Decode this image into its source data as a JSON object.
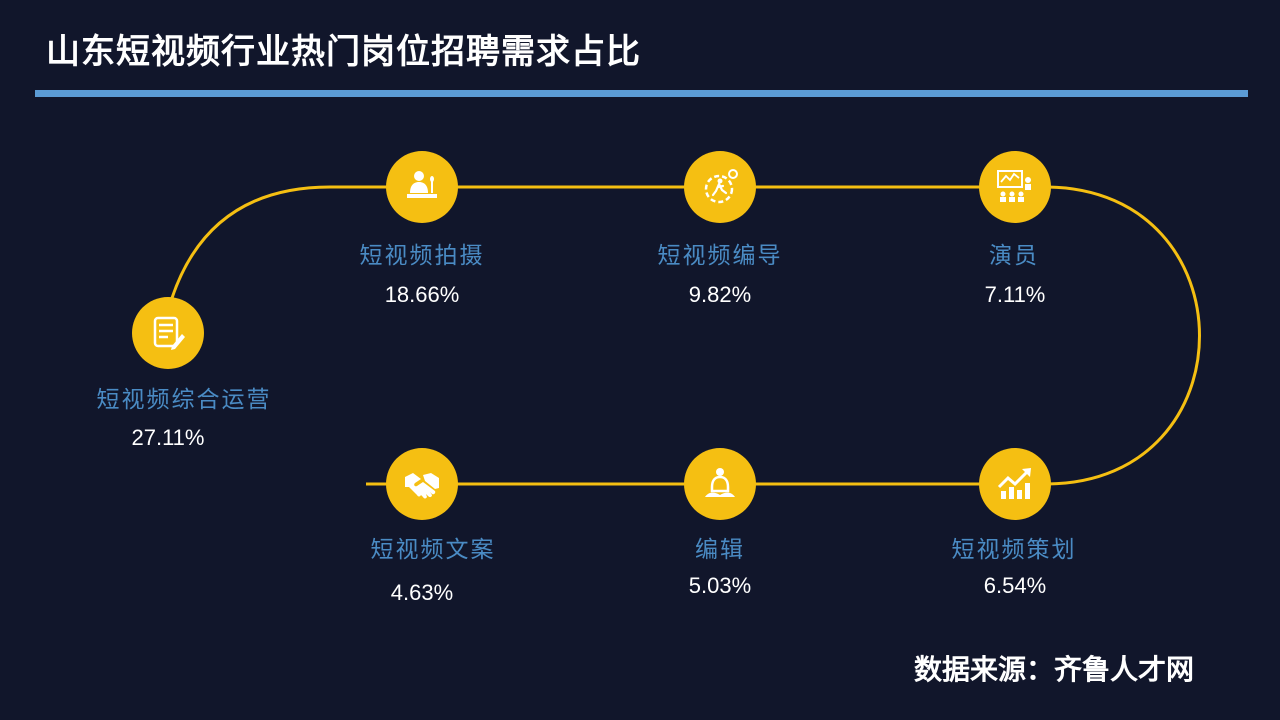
{
  "title": "山东短视频行业热门岗位招聘需求占比",
  "source": "数据来源：齐鲁人才网",
  "colors": {
    "background": "#11162b",
    "accent": "#f5bf12",
    "title_bar": "#5b9bd5",
    "label": "#4a8bc4"
  },
  "positions": [
    {
      "label": "短视频综合运营",
      "percent": "27.11%",
      "icon": "document-edit-icon"
    },
    {
      "label": "短视频拍摄",
      "percent": "18.66%",
      "icon": "presenter-podium-icon"
    },
    {
      "label": "短视频编导",
      "percent": "9.82%",
      "icon": "runner-gear-icon"
    },
    {
      "label": "演员",
      "percent": "7.11%",
      "icon": "audience-presentation-icon"
    },
    {
      "label": "短视频策划",
      "percent": "6.54%",
      "icon": "rising-chart-icon"
    },
    {
      "label": "编辑",
      "percent": "5.03%",
      "icon": "meditation-icon"
    },
    {
      "label": "短视频文案",
      "percent": "4.63%",
      "icon": "handshake-icon"
    }
  ]
}
